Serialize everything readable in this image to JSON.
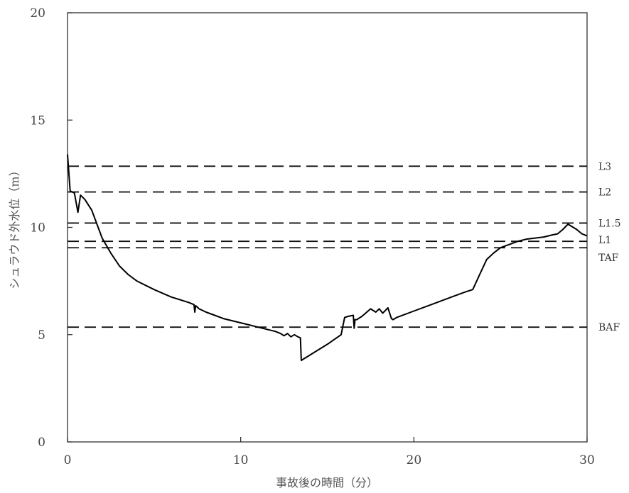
{
  "chart_data": {
    "type": "line",
    "xlabel": "事故後の時間（分）",
    "ylabel": "シュラウド外水位（m）",
    "xlim": [
      0,
      30
    ],
    "ylim": [
      0,
      20
    ],
    "x_ticks": [
      0,
      10,
      20,
      30
    ],
    "y_ticks": [
      0,
      5,
      10,
      15,
      20
    ],
    "x_tick_labels": [
      "0",
      "10",
      "20",
      "30"
    ],
    "y_tick_labels": [
      "0",
      "5",
      "10",
      "15",
      "20"
    ],
    "grid": false,
    "line_color": "#000000",
    "reference_lines": [
      {
        "label": "L3",
        "value": 12.85
      },
      {
        "label": "L2",
        "value": 11.65
      },
      {
        "label": "L1.5",
        "value": 10.2
      },
      {
        "label": "L1",
        "value": 9.35
      },
      {
        "label": "TAF",
        "value": 9.05
      },
      {
        "label": "BAF",
        "value": 5.35
      }
    ],
    "series": [
      {
        "x": [
          0,
          0.15,
          0.4,
          0.6,
          0.75,
          1.0,
          1.4,
          2.0,
          2.5,
          3.0,
          3.5,
          4.0,
          5.0,
          6.0,
          7.0,
          7.3,
          7.35,
          7.4,
          7.6,
          8.0,
          8.5,
          9.0,
          9.5,
          10.0,
          10.5,
          11.0,
          11.5,
          12.0,
          12.3,
          12.5,
          12.7,
          12.9,
          13.1,
          13.3,
          13.45,
          13.5,
          13.6,
          14.0,
          15.0,
          15.8,
          16.0,
          16.2,
          16.5,
          16.55,
          16.6,
          16.7,
          17.0,
          17.5,
          17.8,
          18.0,
          18.2,
          18.5,
          18.7,
          18.8,
          19.0,
          20.0,
          21.0,
          22.0,
          23.0,
          23.4,
          23.8,
          24.2,
          24.6,
          25.0,
          25.5,
          26.0,
          26.5,
          27.0,
          27.5,
          28.0,
          28.3,
          28.6,
          28.9,
          29.1,
          29.4,
          29.7,
          30.0
        ],
        "y": [
          13.4,
          11.7,
          11.6,
          10.7,
          11.5,
          11.3,
          10.8,
          9.5,
          8.8,
          8.2,
          7.8,
          7.5,
          7.1,
          6.75,
          6.5,
          6.4,
          6.05,
          6.35,
          6.2,
          6.05,
          5.9,
          5.75,
          5.65,
          5.55,
          5.45,
          5.35,
          5.25,
          5.15,
          5.05,
          4.95,
          5.05,
          4.9,
          5.0,
          4.9,
          4.85,
          3.8,
          3.85,
          4.05,
          4.55,
          5.0,
          5.8,
          5.85,
          5.9,
          5.3,
          5.7,
          5.7,
          5.85,
          6.2,
          6.05,
          6.2,
          6.0,
          6.25,
          5.75,
          5.7,
          5.8,
          6.1,
          6.4,
          6.7,
          7.0,
          7.1,
          7.8,
          8.5,
          8.8,
          9.05,
          9.2,
          9.35,
          9.45,
          9.5,
          9.55,
          9.65,
          9.7,
          9.9,
          10.15,
          10.05,
          9.9,
          9.7,
          9.6
        ]
      }
    ]
  }
}
